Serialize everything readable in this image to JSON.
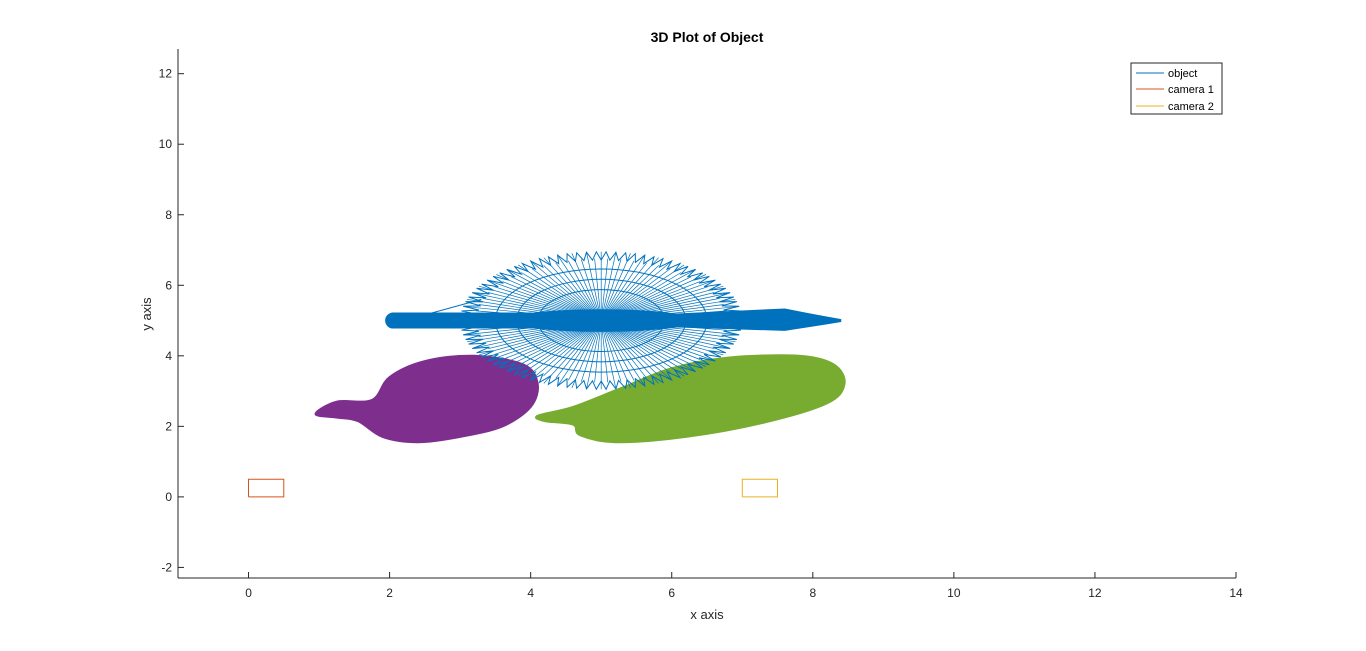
{
  "chart_data": {
    "type": "line",
    "title": "3D Plot of Object",
    "xlabel": "x axis",
    "ylabel": "y axis",
    "xlim": [
      -1,
      14
    ],
    "ylim": [
      -2.3,
      12.7
    ],
    "xticks": [
      0,
      2,
      4,
      6,
      8,
      10,
      12,
      14
    ],
    "yticks": [
      -2,
      0,
      2,
      4,
      6,
      8,
      10,
      12
    ],
    "xtick_labels": [
      "0",
      "2",
      "4",
      "6",
      "8",
      "10",
      "12",
      "14"
    ],
    "ytick_labels": [
      "-2",
      "0",
      "2",
      "4",
      "6",
      "8",
      "10",
      "12"
    ],
    "grid": false,
    "legend_position": "top-right",
    "series": [
      {
        "name": "object",
        "color": "#0072BD",
        "shape": "spiky-ellipse-with-rods",
        "center": [
          5,
          5
        ],
        "radii": [
          2,
          1.95
        ],
        "rod_x_range": [
          2.05,
          8.4
        ],
        "rod_y": 5
      },
      {
        "name": "camera 1",
        "color": "#D95319",
        "shape": "rectangle",
        "points": [
          [
            0,
            0
          ],
          [
            0.5,
            0
          ],
          [
            0.5,
            0.5
          ],
          [
            0,
            0.5
          ],
          [
            0,
            0
          ]
        ]
      },
      {
        "name": "camera 2",
        "color": "#EDB120",
        "shape": "rectangle",
        "points": [
          [
            7,
            0
          ],
          [
            7.5,
            0
          ],
          [
            7.5,
            0.5
          ],
          [
            7,
            0.5
          ],
          [
            7,
            0
          ]
        ]
      }
    ],
    "projections": [
      {
        "color": "#7E2F8E",
        "outline": [
          [
            0.95,
            2.35
          ],
          [
            1.25,
            2.7
          ],
          [
            1.75,
            2.75
          ],
          [
            2.0,
            3.4
          ],
          [
            2.5,
            3.85
          ],
          [
            3.2,
            4.0
          ],
          [
            3.9,
            3.75
          ],
          [
            4.1,
            3.2
          ],
          [
            4.0,
            2.55
          ],
          [
            3.6,
            2.0
          ],
          [
            3.0,
            1.7
          ],
          [
            2.4,
            1.55
          ],
          [
            1.9,
            1.7
          ],
          [
            1.55,
            2.15
          ],
          [
            1.25,
            2.25
          ]
        ]
      },
      {
        "color": "#77AC30",
        "outline": [
          [
            4.1,
            2.3
          ],
          [
            4.6,
            2.55
          ],
          [
            5.3,
            3.1
          ],
          [
            6.0,
            3.65
          ],
          [
            6.8,
            3.95
          ],
          [
            7.8,
            4.0
          ],
          [
            8.3,
            3.75
          ],
          [
            8.45,
            3.2
          ],
          [
            8.2,
            2.65
          ],
          [
            7.3,
            2.1
          ],
          [
            6.2,
            1.7
          ],
          [
            5.2,
            1.55
          ],
          [
            4.7,
            1.75
          ],
          [
            4.6,
            2.05
          ],
          [
            4.2,
            2.15
          ]
        ]
      }
    ]
  }
}
